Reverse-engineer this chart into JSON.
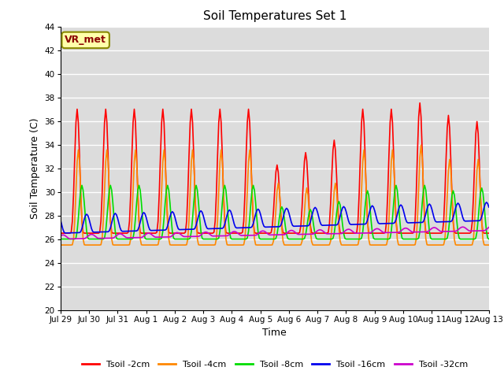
{
  "title": "Soil Temperatures Set 1",
  "xlabel": "Time",
  "ylabel": "Soil Temperature (C)",
  "ylim": [
    20,
    44
  ],
  "yticks": [
    20,
    22,
    24,
    26,
    28,
    30,
    32,
    34,
    36,
    38,
    40,
    42,
    44
  ],
  "background_color": "#dcdcdc",
  "figure_background": "#ffffff",
  "annotation_text": "VR_met",
  "annotation_bg": "#ffffaa",
  "annotation_border": "#888800",
  "series": [
    {
      "label": "Tsoil -2cm",
      "color": "#ff0000"
    },
    {
      "label": "Tsoil -4cm",
      "color": "#ff8800"
    },
    {
      "label": "Tsoil -8cm",
      "color": "#00dd00"
    },
    {
      "label": "Tsoil -16cm",
      "color": "#0000ee"
    },
    {
      "label": "Tsoil -32cm",
      "color": "#cc00cc"
    }
  ],
  "x_tick_labels": [
    "Jul 29",
    "Jul 30",
    "Jul 31",
    "Aug 1",
    "Aug 2",
    "Aug 3",
    "Aug 4",
    "Aug 5",
    "Aug 6",
    "Aug 7",
    "Aug 8",
    "Aug 9",
    "Aug 10",
    "Aug 11",
    "Aug 12",
    "Aug 13"
  ],
  "x_tick_positions": [
    0,
    24,
    48,
    72,
    96,
    120,
    144,
    168,
    192,
    216,
    240,
    264,
    288,
    312,
    336,
    360
  ],
  "total_hours": 360
}
